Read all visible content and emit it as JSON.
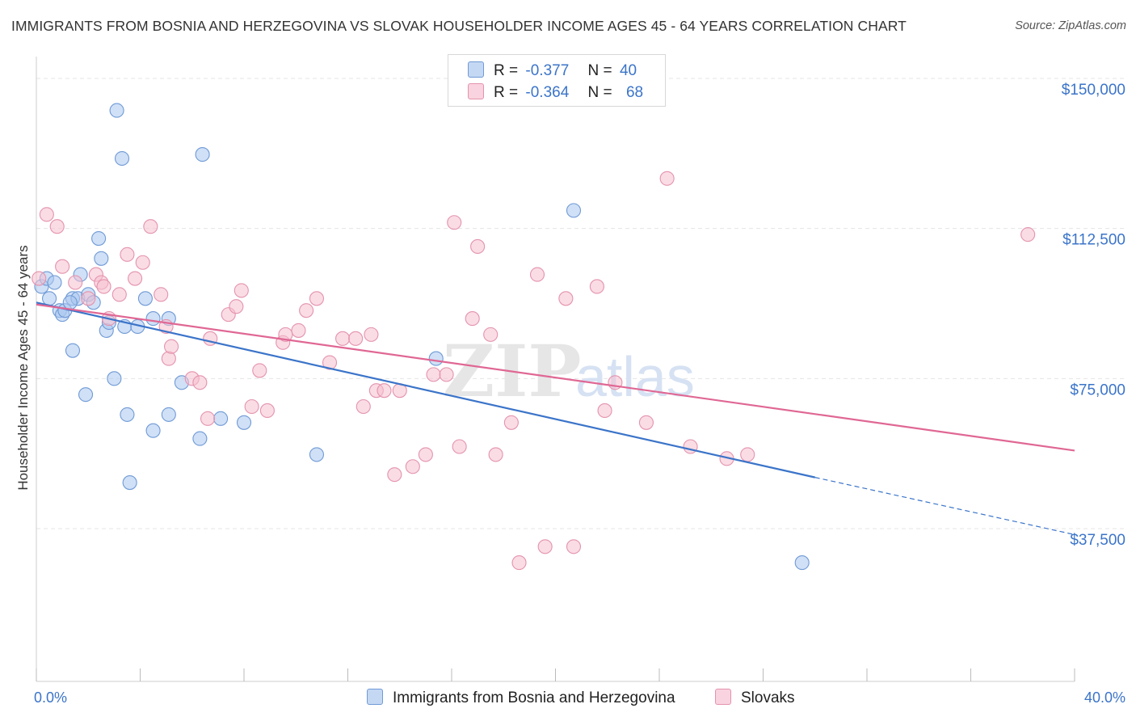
{
  "header": {
    "title": "IMMIGRANTS FROM BOSNIA AND HERZEGOVINA VS SLOVAK HOUSEHOLDER INCOME AGES 45 - 64 YEARS CORRELATION CHART",
    "source": "Source: ZipAtlas.com"
  },
  "watermark": {
    "zip": "ZIP",
    "atlas": "atlas"
  },
  "legend": {
    "r_label": "R =",
    "n_label": "N =",
    "series1": {
      "r": "-0.377",
      "n": "40"
    },
    "series2": {
      "r": "-0.364",
      "n": "68"
    }
  },
  "bottom_legend": {
    "series1": "Immigrants from Bosnia and Herzegovina",
    "series2": "Slovaks"
  },
  "colors": {
    "series1_fill": "#aac6ee",
    "series1_stroke": "#6f9ad6",
    "series1_line": "#3b74c9",
    "series2_fill": "#f6bfd0",
    "series2_stroke": "#e493ad",
    "series2_line": "#e06794",
    "axis_text": "#3b74c9",
    "grid": "#e5e5e5"
  },
  "chart_data": {
    "type": "scatter",
    "title": "IMMIGRANTS FROM BOSNIA AND HERZEGOVINA VS SLOVAK HOUSEHOLDER INCOME AGES 45 - 64 YEARS CORRELATION CHART",
    "xlabel": "",
    "ylabel": "Householder Income Ages 45 - 64 years",
    "xlim": [
      0,
      40
    ],
    "ylim": [
      0,
      152000
    ],
    "x_tick_labels": {
      "min": "0.0%",
      "max": "40.0%"
    },
    "y_ticks": [
      37500,
      75000,
      112500,
      150000
    ],
    "y_tick_labels": [
      "$37,500",
      "$75,000",
      "$112,500",
      "$150,000"
    ],
    "grid": true,
    "series": [
      {
        "name": "Immigrants from Bosnia and Herzegovina",
        "r": -0.377,
        "n": 40,
        "trend": {
          "x_start": 0,
          "y_start": 94000,
          "x_solid_end": 30,
          "y_solid_end": 50300,
          "x_end": 40,
          "y_end": 36000
        },
        "points": [
          [
            0.2,
            98000
          ],
          [
            0.4,
            100000
          ],
          [
            0.5,
            95000
          ],
          [
            0.7,
            99000
          ],
          [
            0.9,
            92000
          ],
          [
            1.0,
            91000
          ],
          [
            1.1,
            92000
          ],
          [
            1.4,
            95000
          ],
          [
            1.6,
            95000
          ],
          [
            1.7,
            101000
          ],
          [
            2.0,
            96000
          ],
          [
            2.2,
            94000
          ],
          [
            2.4,
            110000
          ],
          [
            2.5,
            105000
          ],
          [
            2.7,
            87000
          ],
          [
            2.8,
            89000
          ],
          [
            3.1,
            142000
          ],
          [
            3.3,
            130000
          ],
          [
            3.4,
            88000
          ],
          [
            3.5,
            66000
          ],
          [
            3.9,
            88000
          ],
          [
            4.2,
            95000
          ],
          [
            4.5,
            90000
          ],
          [
            5.1,
            90000
          ],
          [
            6.4,
            131000
          ],
          [
            7.1,
            65000
          ],
          [
            8.0,
            64000
          ],
          [
            10.8,
            56000
          ],
          [
            15.4,
            80000
          ],
          [
            20.7,
            117000
          ],
          [
            29.5,
            29000
          ],
          [
            1.4,
            82000
          ],
          [
            1.9,
            71000
          ],
          [
            3.0,
            75000
          ],
          [
            4.5,
            62000
          ],
          [
            5.1,
            66000
          ],
          [
            5.6,
            74000
          ],
          [
            6.3,
            60000
          ],
          [
            3.6,
            49000
          ],
          [
            1.3,
            94000
          ]
        ]
      },
      {
        "name": "Slovaks",
        "r": -0.364,
        "n": 68,
        "trend": {
          "x_start": 0,
          "y_start": 93500,
          "x_end": 40,
          "y_end": 57000
        },
        "points": [
          [
            0.1,
            100000
          ],
          [
            0.4,
            116000
          ],
          [
            0.8,
            113000
          ],
          [
            1.0,
            103000
          ],
          [
            1.5,
            99000
          ],
          [
            2.0,
            95000
          ],
          [
            2.3,
            101000
          ],
          [
            2.5,
            99000
          ],
          [
            2.6,
            98000
          ],
          [
            2.8,
            90000
          ],
          [
            3.2,
            96000
          ],
          [
            3.5,
            106000
          ],
          [
            3.8,
            100000
          ],
          [
            4.1,
            104000
          ],
          [
            4.4,
            113000
          ],
          [
            4.8,
            96000
          ],
          [
            5.0,
            88000
          ],
          [
            5.1,
            80000
          ],
          [
            5.2,
            83000
          ],
          [
            6.0,
            75000
          ],
          [
            6.3,
            74000
          ],
          [
            6.6,
            65000
          ],
          [
            6.7,
            85000
          ],
          [
            7.4,
            91000
          ],
          [
            7.7,
            93000
          ],
          [
            7.9,
            97000
          ],
          [
            8.3,
            68000
          ],
          [
            8.6,
            77000
          ],
          [
            8.9,
            67000
          ],
          [
            9.5,
            84000
          ],
          [
            9.6,
            86000
          ],
          [
            10.1,
            87000
          ],
          [
            10.4,
            92000
          ],
          [
            10.8,
            95000
          ],
          [
            11.3,
            79000
          ],
          [
            11.8,
            85000
          ],
          [
            12.3,
            85000
          ],
          [
            12.6,
            68000
          ],
          [
            12.9,
            86000
          ],
          [
            13.1,
            72000
          ],
          [
            13.4,
            72000
          ],
          [
            13.8,
            51000
          ],
          [
            14.0,
            72000
          ],
          [
            14.5,
            53000
          ],
          [
            15.0,
            56000
          ],
          [
            15.3,
            76000
          ],
          [
            15.8,
            76000
          ],
          [
            16.1,
            114000
          ],
          [
            16.3,
            58000
          ],
          [
            16.8,
            90000
          ],
          [
            17.0,
            108000
          ],
          [
            17.5,
            86000
          ],
          [
            17.7,
            56000
          ],
          [
            18.3,
            64000
          ],
          [
            18.6,
            29000
          ],
          [
            19.3,
            101000
          ],
          [
            19.6,
            33000
          ],
          [
            20.4,
            95000
          ],
          [
            20.7,
            33000
          ],
          [
            21.6,
            98000
          ],
          [
            21.9,
            67000
          ],
          [
            22.3,
            74000
          ],
          [
            23.5,
            64000
          ],
          [
            24.3,
            125000
          ],
          [
            25.2,
            58000
          ],
          [
            26.6,
            55000
          ],
          [
            27.4,
            56000
          ],
          [
            38.2,
            111000
          ]
        ]
      }
    ]
  }
}
